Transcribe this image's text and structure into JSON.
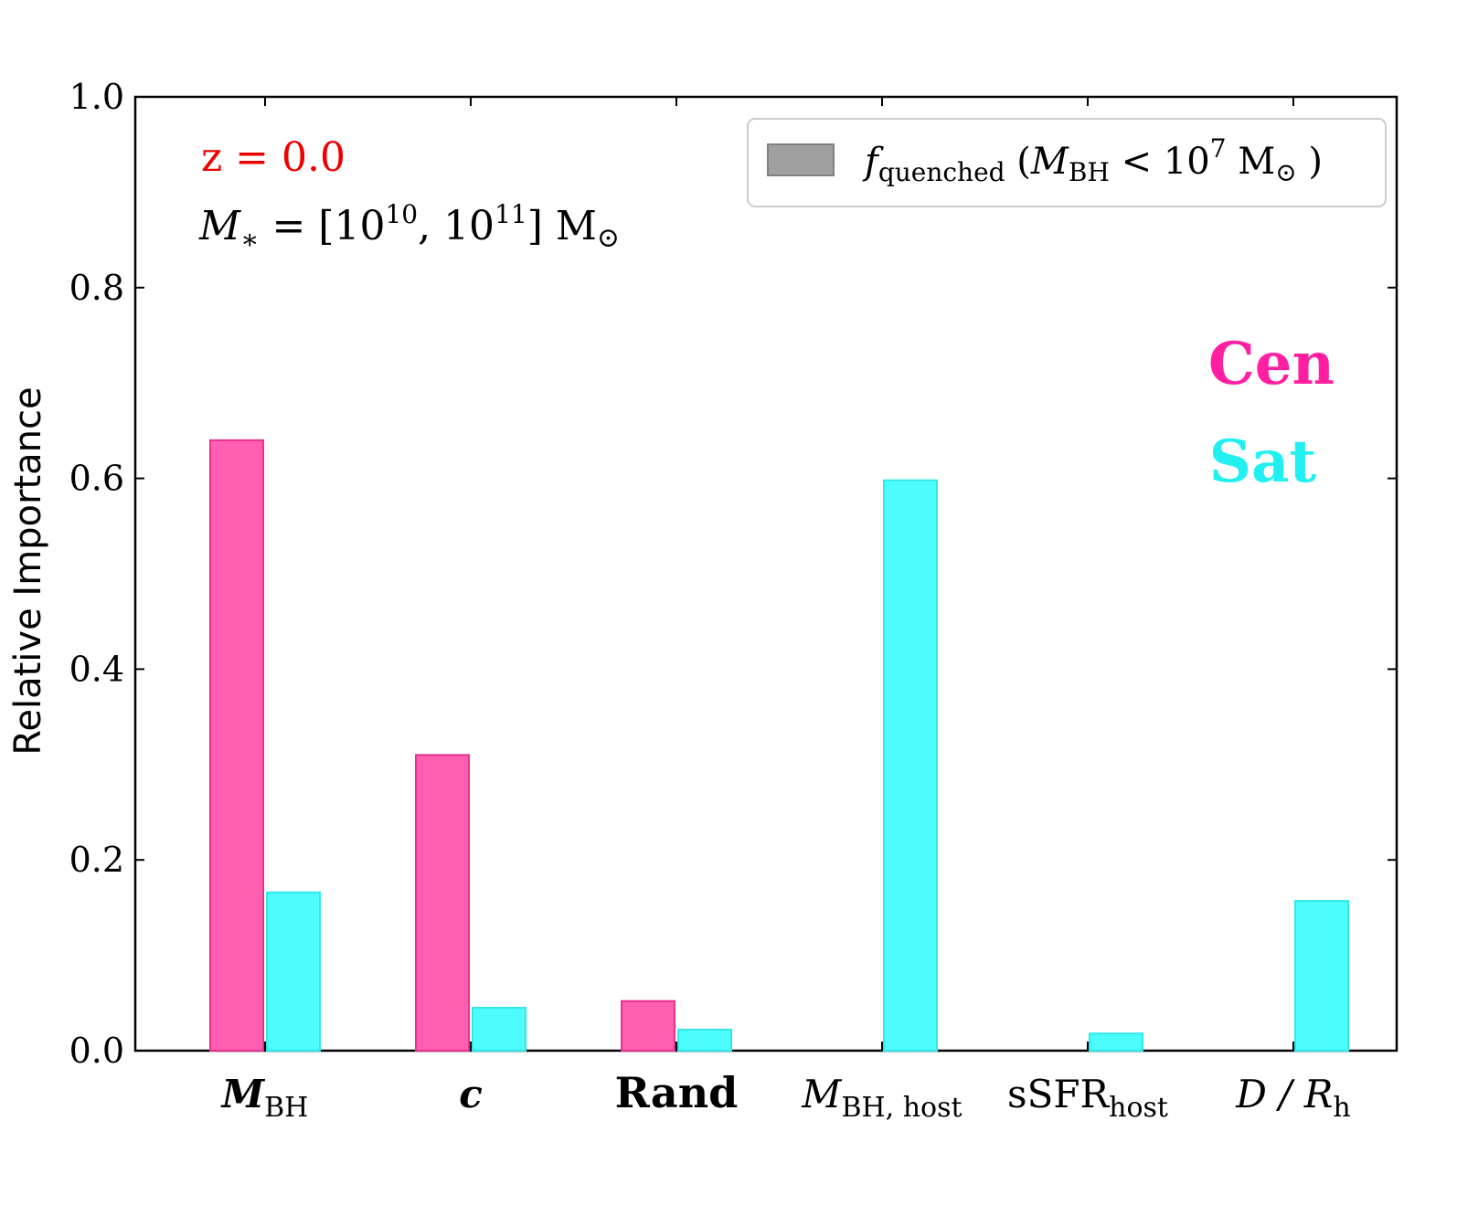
{
  "chart_data": {
    "type": "bar",
    "ylabel": "Relative Importance",
    "ylim": [
      0.0,
      1.0
    ],
    "yticks": [
      "0.0",
      "0.2",
      "0.4",
      "0.6",
      "0.8",
      "1.0"
    ],
    "categories": [
      {
        "main": "M",
        "sub": "BH",
        "style": "bold-italic"
      },
      {
        "main": "c",
        "sub": "",
        "style": "bold-italic"
      },
      {
        "main": "Rand",
        "sub": "",
        "style": "bold"
      },
      {
        "main": "M",
        "sub": "BH, host",
        "style": "italic"
      },
      {
        "main": "sSFR",
        "sub": "host",
        "style": "normal"
      },
      {
        "main": "D / R",
        "sub": "h",
        "style": "italic"
      }
    ],
    "series": [
      {
        "name": "Cen",
        "color": "#ff5fb0",
        "edge": "#e8308f",
        "values": [
          0.64,
          0.31,
          0.052,
          null,
          null,
          null
        ]
      },
      {
        "name": "Sat",
        "color": "#4dfcfc",
        "edge": "#30e8ec",
        "values": [
          0.166,
          0.045,
          0.022,
          0.598,
          0.018,
          0.157
        ]
      }
    ],
    "annotations": {
      "redshift": "z = 0.0",
      "redshift_color": "#ee0000",
      "mass_main": "M",
      "mass_sub": "∗",
      "mass_eq": " = [10",
      "mass_exp1": "10",
      "mass_mid": ", 10",
      "mass_exp2": "11",
      "mass_end": "] M",
      "mass_sun": "⊙",
      "cen_label": "Cen",
      "cen_color": "#ff1fa0",
      "sat_label": "Sat",
      "sat_color": "#22f0f0"
    },
    "legend": {
      "position": "top-right",
      "f": "f",
      "f_sub": "quenched",
      "open": " (",
      "m": "M",
      "m_sub": "BH",
      "lt": " < 10",
      "exp": "7",
      "unit": " M",
      "sun": "⊙",
      "close": " )",
      "patch_color": "#a0a0a0"
    }
  }
}
